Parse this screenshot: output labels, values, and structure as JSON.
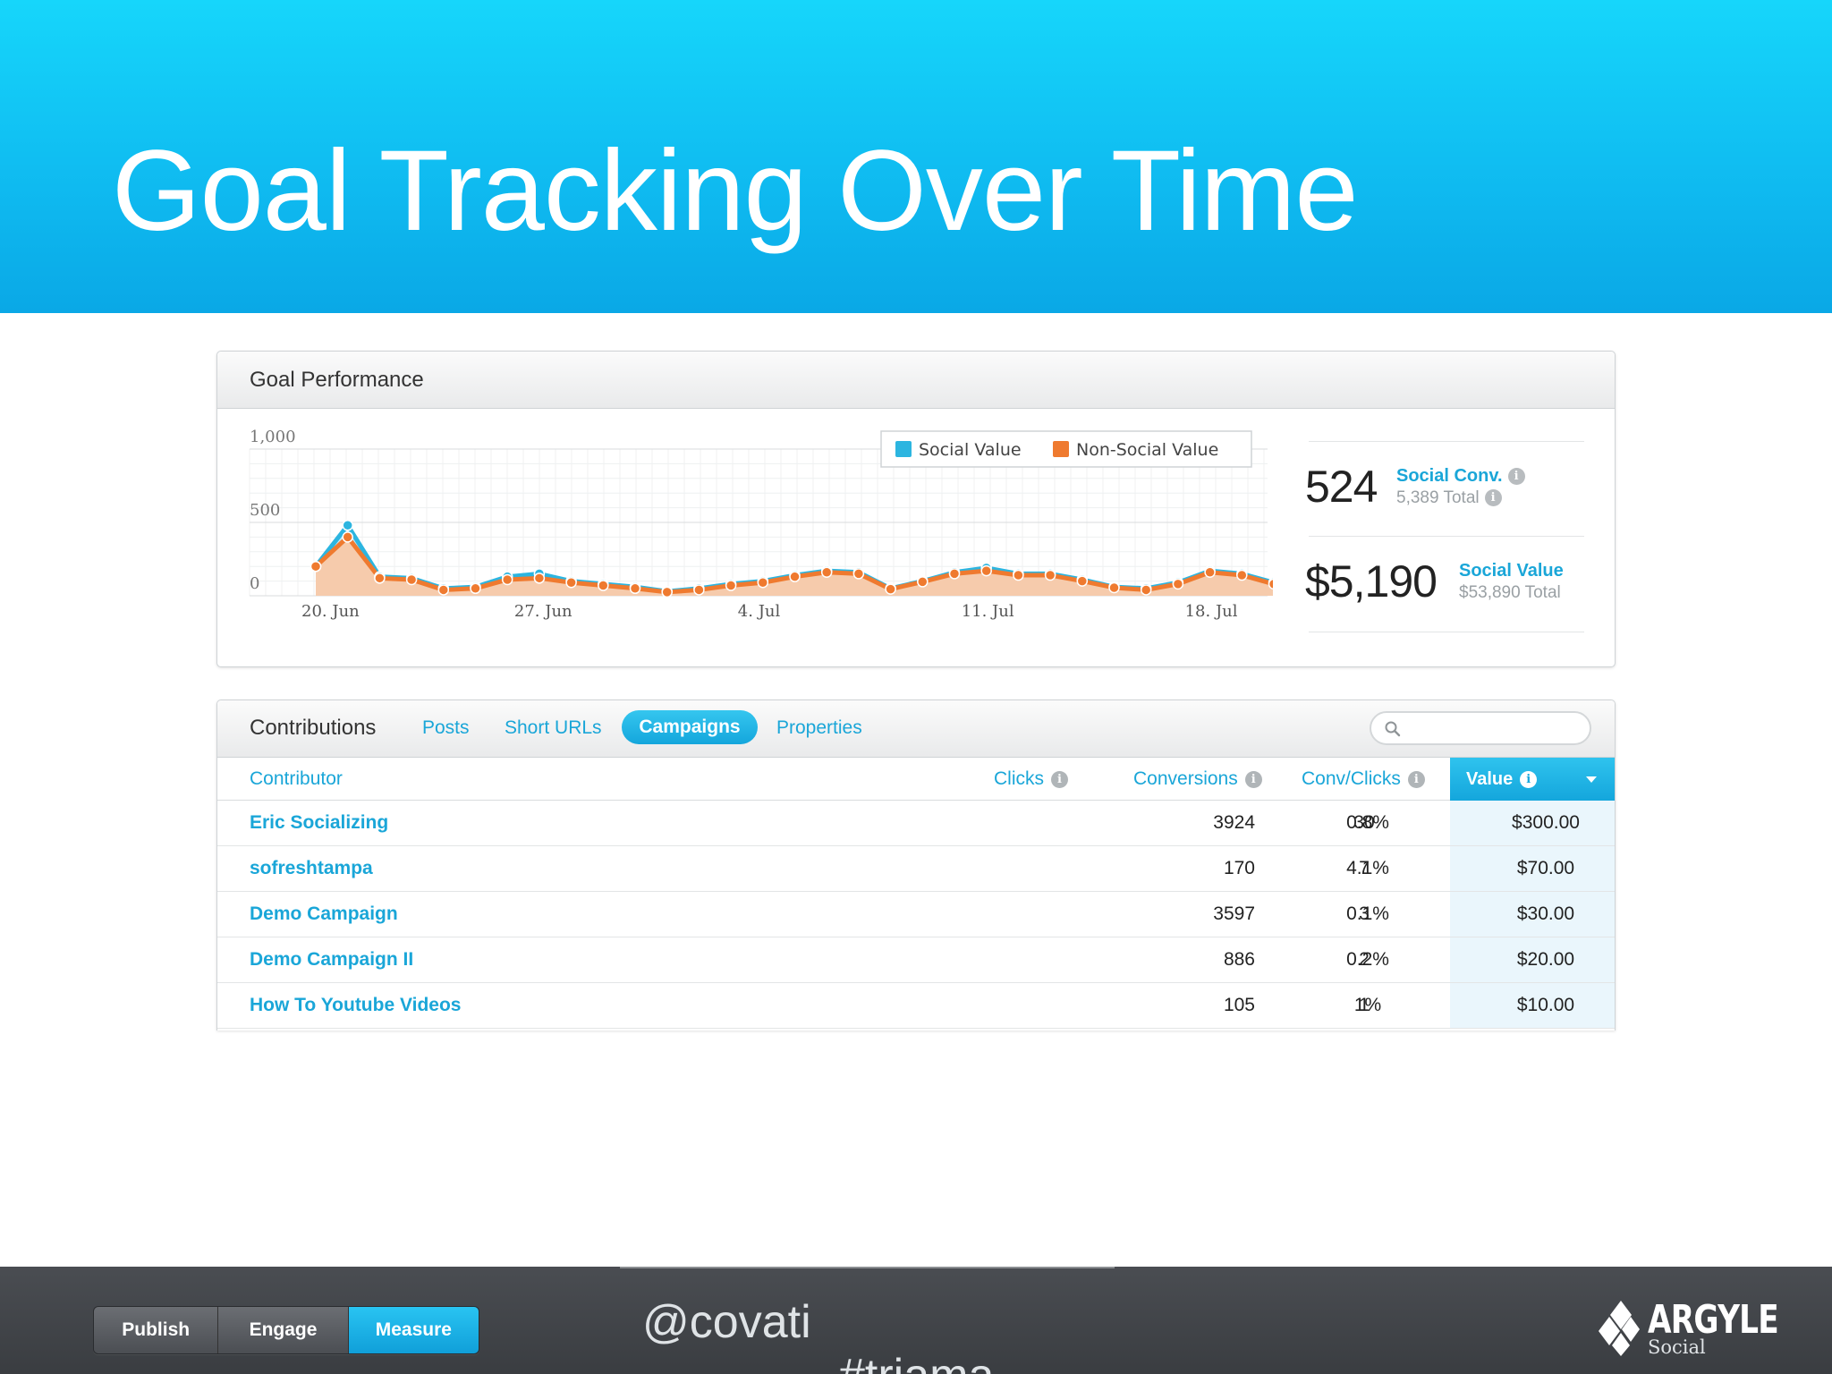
{
  "slide": {
    "title": "Goal Tracking Over Time"
  },
  "goal_panel": {
    "title": "Goal Performance",
    "kpis": [
      {
        "big": "524",
        "label": "Social Conv.",
        "sub": "5,389 Total"
      },
      {
        "big": "$5,190",
        "label": "Social Value",
        "sub": "$53,890 Total"
      }
    ]
  },
  "chart_data": {
    "type": "area",
    "title": "",
    "xlabel": "",
    "ylabel": "",
    "ylim": [
      0,
      1000
    ],
    "yticks": [
      "0",
      "500",
      "1,000"
    ],
    "xticks": [
      "20. Jun",
      "27. Jun",
      "4. Jul",
      "11. Jul",
      "18. Jul"
    ],
    "grid": true,
    "legend": "top",
    "x": [
      "Jun 20",
      "Jun 21",
      "Jun 22",
      "Jun 23",
      "Jun 24",
      "Jun 25",
      "Jun 26",
      "Jun 27",
      "Jun 28",
      "Jun 29",
      "Jun 30",
      "Jul 1",
      "Jul 2",
      "Jul 3",
      "Jul 4",
      "Jul 5",
      "Jul 6",
      "Jul 7",
      "Jul 8",
      "Jul 9",
      "Jul 10",
      "Jul 11",
      "Jul 12",
      "Jul 13",
      "Jul 14",
      "Jul 15",
      "Jul 16",
      "Jul 17",
      "Jul 18",
      "Jul 19",
      "Jul 20",
      "Jul 21",
      "Jul 22"
    ],
    "series": [
      {
        "name": "Social Value",
        "color": "#2cb5e0",
        "values": [
          200,
          480,
          130,
          120,
          50,
          60,
          130,
          150,
          100,
          80,
          60,
          30,
          50,
          80,
          100,
          140,
          170,
          160,
          50,
          100,
          160,
          190,
          150,
          150,
          110,
          60,
          50,
          90,
          170,
          150,
          90,
          50,
          50
        ]
      },
      {
        "name": "Non-Social Value",
        "color": "#ef7a2f",
        "values": [
          200,
          400,
          120,
          110,
          40,
          50,
          110,
          120,
          90,
          70,
          50,
          25,
          40,
          70,
          90,
          130,
          160,
          150,
          45,
          95,
          150,
          170,
          140,
          140,
          100,
          55,
          40,
          80,
          160,
          140,
          80,
          40,
          40
        ]
      }
    ]
  },
  "contributions": {
    "title": "Contributions",
    "tabs": [
      "Posts",
      "Short URLs",
      "Campaigns",
      "Properties"
    ],
    "active_tab": "Campaigns",
    "search_placeholder": "",
    "columns": [
      "Contributor",
      "Clicks",
      "Conversions",
      "Conv/Clicks",
      "Value"
    ],
    "rows": [
      {
        "name": "Eric Socializing",
        "clicks": "3924",
        "conversions": "30",
        "ratio": "0.8%",
        "value": "$300.00"
      },
      {
        "name": "sofreshtampa",
        "clicks": "170",
        "conversions": "7",
        "ratio": "4.1%",
        "value": "$70.00"
      },
      {
        "name": "Demo Campaign",
        "clicks": "3597",
        "conversions": "3",
        "ratio": "0.1%",
        "value": "$30.00"
      },
      {
        "name": "Demo Campaign II",
        "clicks": "886",
        "conversions": "2",
        "ratio": "0.2%",
        "value": "$20.00"
      },
      {
        "name": "How To Youtube Videos",
        "clicks": "105",
        "conversions": "1",
        "ratio": "1%",
        "value": "$10.00"
      }
    ]
  },
  "footer": {
    "segments": [
      "Publish",
      "Engage",
      "Measure"
    ],
    "active_segment": "Measure",
    "handle": "@covati",
    "hashtag": "#triama",
    "logo_word": "ARGYLE",
    "logo_sub": "Social"
  },
  "colors": {
    "accent": "#1aa6d8",
    "header": "#12c4f4",
    "social": "#2cb5e0",
    "non_social": "#ef7a2f"
  },
  "icons": [
    "info-icon",
    "search-icon",
    "sort-caret-icon",
    "argyle-diamond-logo"
  ]
}
